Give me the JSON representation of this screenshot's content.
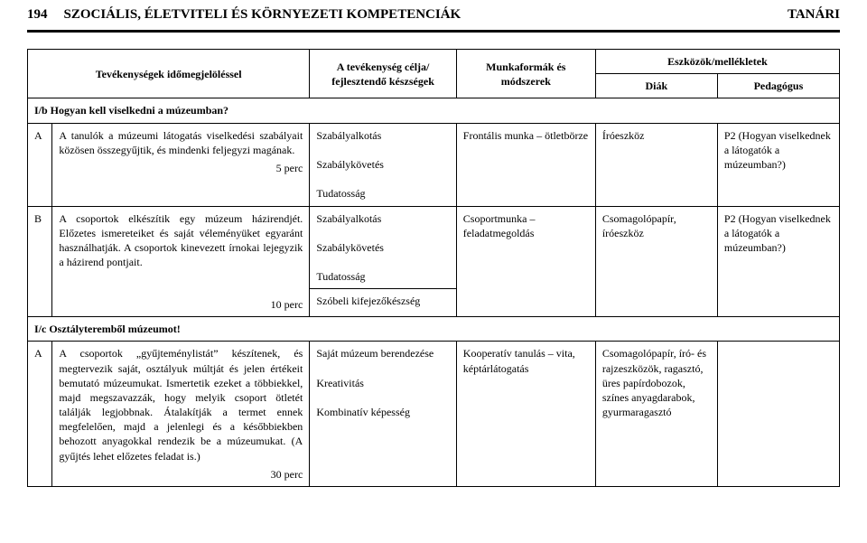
{
  "header": {
    "page_number": "194",
    "title": "SZOCIÁLIS, ÉLETVITELI ÉS KÖRNYEZETI KOMPETENCIÁK",
    "role": "TANÁRI"
  },
  "table": {
    "head": {
      "activities": "Tevékenységek időmegjelöléssel",
      "goal": "A tevékenység célja/ fejlesztendő készségek",
      "forms": "Munkaformák és módszerek",
      "tools_group": "Eszközök/mellékletek",
      "tools_student": "Diák",
      "tools_teacher": "Pedagógus"
    },
    "section_b": {
      "label": "I/b Hogyan kell viselkedni a múzeumban?"
    },
    "row_a": {
      "id": "A",
      "activity": "A tanulók a múzeumi látogatás viselkedési szabályait közösen összegyűjtik, és mindenki feljegyzi magának.",
      "time": "5 perc",
      "goal": "Szabályalkotás\n\nSzabálykövetés\n\nTudatosság",
      "form": "Frontális munka – ötletbörze",
      "student": "Íróeszköz",
      "teacher": "P2 (Hogyan viselkednek a látogatók a múzeumban?)"
    },
    "row_b": {
      "id": "B",
      "activity": "A csoportok elkészítik egy múzeum házirendjét. Előzetes ismereteiket és saját véleményüket egyaránt használhatják. A csoportok kinevezett írnokai lejegyzik a házirend pontjait.",
      "goal": "Szabályalkotás\n\nSzabálykövetés\n\nTudatosság",
      "form": "Csoportmunka – feladatmegoldás",
      "student": "Csomagolópapír, íróeszköz",
      "teacher": "P2 (Hogyan viselkednek a látogatók a múzeumban?)"
    },
    "row_b2": {
      "time": "10 perc",
      "goal": "Szóbeli kifejezőkészség"
    },
    "section_c": {
      "label": "I/c Osztályteremből múzeumot!"
    },
    "row_c": {
      "id": "A",
      "activity": "A csoportok „gyűjteménylistát” készítenek, és megtervezik saját, osztályuk múltját és jelen értékeit bemutató múzeumukat. Ismertetik ezeket a többiekkel, majd megszavazzák, hogy melyik csoport ötletét találják legjobbnak. Átalakítják a termet ennek megfelelően, majd a jelenlegi és a későbbiekben behozott anyagokkal rendezik be a múzeumukat. (A gyűjtés lehet előzetes feladat is.)",
      "time": "30 perc",
      "goal": "Saját múzeum berendezése\n\nKreativitás\n\nKombinatív képesség",
      "form": "Kooperatív tanulás – vita, képtárlátogatás",
      "student": "Csomagolópapír, író- és rajzeszközök, ragasztó, üres papírdobozok, színes anyagdarabok, gyurmaragasztó",
      "teacher": ""
    }
  }
}
